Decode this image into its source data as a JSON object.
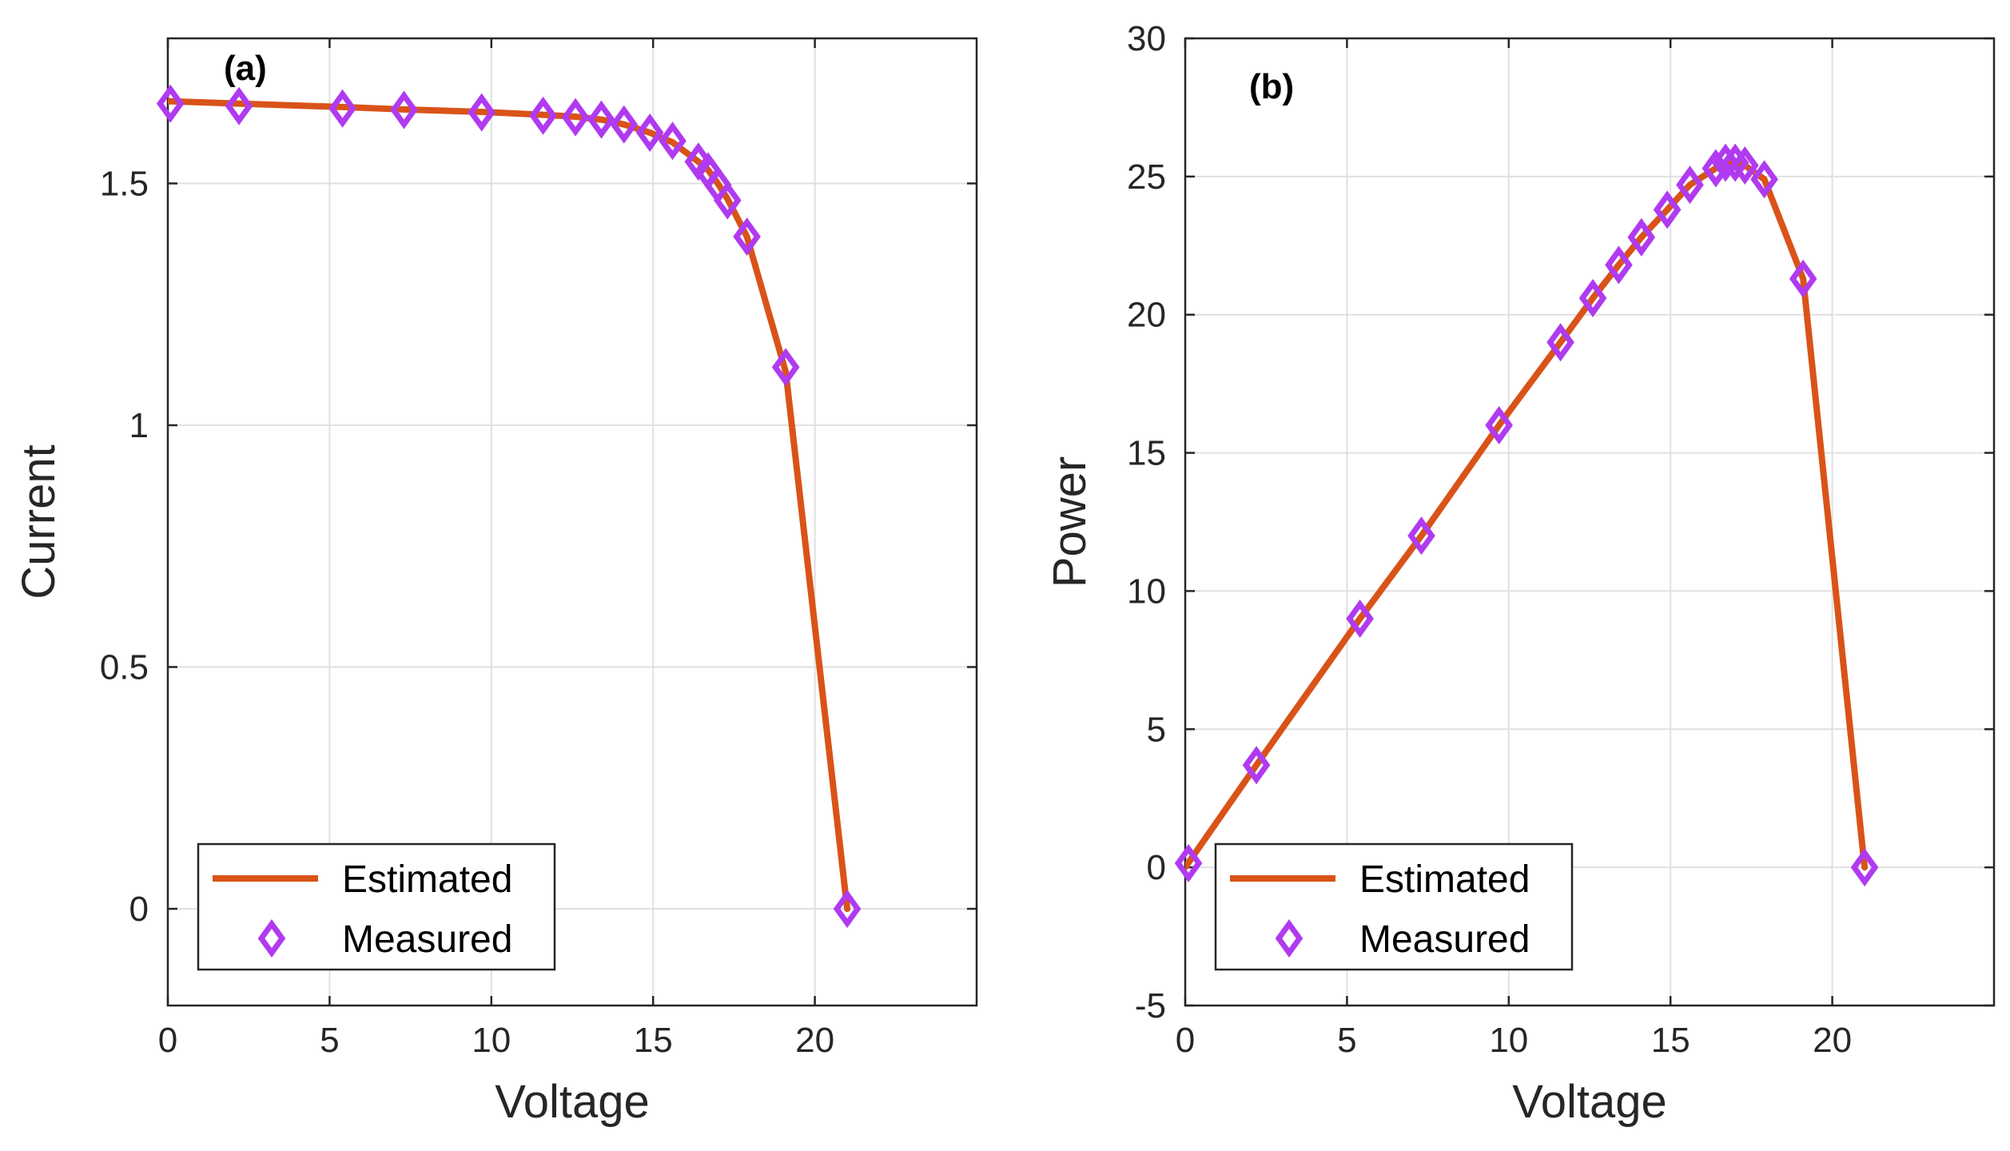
{
  "chart_data": [
    {
      "type": "line",
      "panel_label": "(a)",
      "xlabel": "Voltage",
      "ylabel": "Current",
      "xlim": [
        0,
        25
      ],
      "ylim": [
        -0.2,
        1.8
      ],
      "xticks": [
        0,
        5,
        10,
        15,
        20
      ],
      "yticks": [
        0,
        0.5,
        1,
        1.5
      ],
      "xtick_labels": [
        "0",
        "5",
        "10",
        "15",
        "20"
      ],
      "ytick_labels": [
        "0",
        "0.5",
        "1",
        "1.5"
      ],
      "grid": true,
      "legend": "bottom-left",
      "series": [
        {
          "name": "Estimated",
          "style": "line",
          "color": "#D95319",
          "x": [
            0,
            2.2,
            5.4,
            7.3,
            9.7,
            11.6,
            12.6,
            13.4,
            14.1,
            14.9,
            15.6,
            16.4,
            16.7,
            17.0,
            17.3,
            17.9,
            19.1,
            21.0
          ],
          "y": [
            1.67,
            1.665,
            1.658,
            1.653,
            1.648,
            1.642,
            1.638,
            1.632,
            1.622,
            1.605,
            1.585,
            1.545,
            1.528,
            1.5,
            1.468,
            1.39,
            1.11,
            0.0
          ]
        },
        {
          "name": "Measured",
          "style": "diamond",
          "color": "#B03AF0",
          "x": [
            0.08,
            2.2,
            5.4,
            7.3,
            9.7,
            11.6,
            12.6,
            13.4,
            14.1,
            14.9,
            15.6,
            16.4,
            16.7,
            17.0,
            17.3,
            17.9,
            19.1,
            21.0
          ],
          "y": [
            1.665,
            1.66,
            1.655,
            1.652,
            1.647,
            1.64,
            1.637,
            1.632,
            1.622,
            1.605,
            1.588,
            1.545,
            1.525,
            1.497,
            1.465,
            1.39,
            1.12,
            0.0
          ]
        }
      ]
    },
    {
      "type": "line",
      "panel_label": "(b)",
      "xlabel": "Voltage",
      "ylabel": "Power",
      "xlim": [
        0,
        25
      ],
      "ylim": [
        -5,
        30
      ],
      "xticks": [
        0,
        5,
        10,
        15,
        20
      ],
      "yticks": [
        -5,
        0,
        5,
        10,
        15,
        20,
        25,
        30
      ],
      "xtick_labels": [
        "0",
        "5",
        "10",
        "15",
        "20"
      ],
      "ytick_labels": [
        "-5",
        "0",
        "5",
        "10",
        "15",
        "20",
        "25",
        "30"
      ],
      "grid": true,
      "legend": "bottom-left",
      "series": [
        {
          "name": "Estimated",
          "style": "line",
          "color": "#D95319",
          "x": [
            0,
            2.2,
            5.4,
            7.3,
            9.7,
            11.6,
            12.6,
            13.4,
            14.1,
            14.9,
            15.6,
            16.4,
            16.7,
            17.0,
            17.3,
            17.9,
            19.1,
            21.0
          ],
          "y": [
            0,
            3.7,
            9.0,
            12.0,
            16.0,
            19.0,
            20.6,
            21.8,
            22.8,
            23.8,
            24.7,
            25.3,
            25.5,
            25.5,
            25.4,
            24.9,
            21.3,
            0.0
          ]
        },
        {
          "name": "Measured",
          "style": "diamond",
          "color": "#B03AF0",
          "x": [
            0.1,
            2.2,
            5.4,
            7.3,
            9.7,
            11.6,
            12.6,
            13.4,
            14.1,
            14.9,
            15.6,
            16.4,
            16.7,
            17.0,
            17.3,
            17.9,
            19.1,
            21.0
          ],
          "y": [
            0.15,
            3.7,
            9.0,
            12.0,
            16.0,
            19.0,
            20.6,
            21.8,
            22.8,
            23.8,
            24.7,
            25.3,
            25.5,
            25.5,
            25.4,
            24.9,
            21.3,
            0.0
          ]
        }
      ]
    }
  ]
}
